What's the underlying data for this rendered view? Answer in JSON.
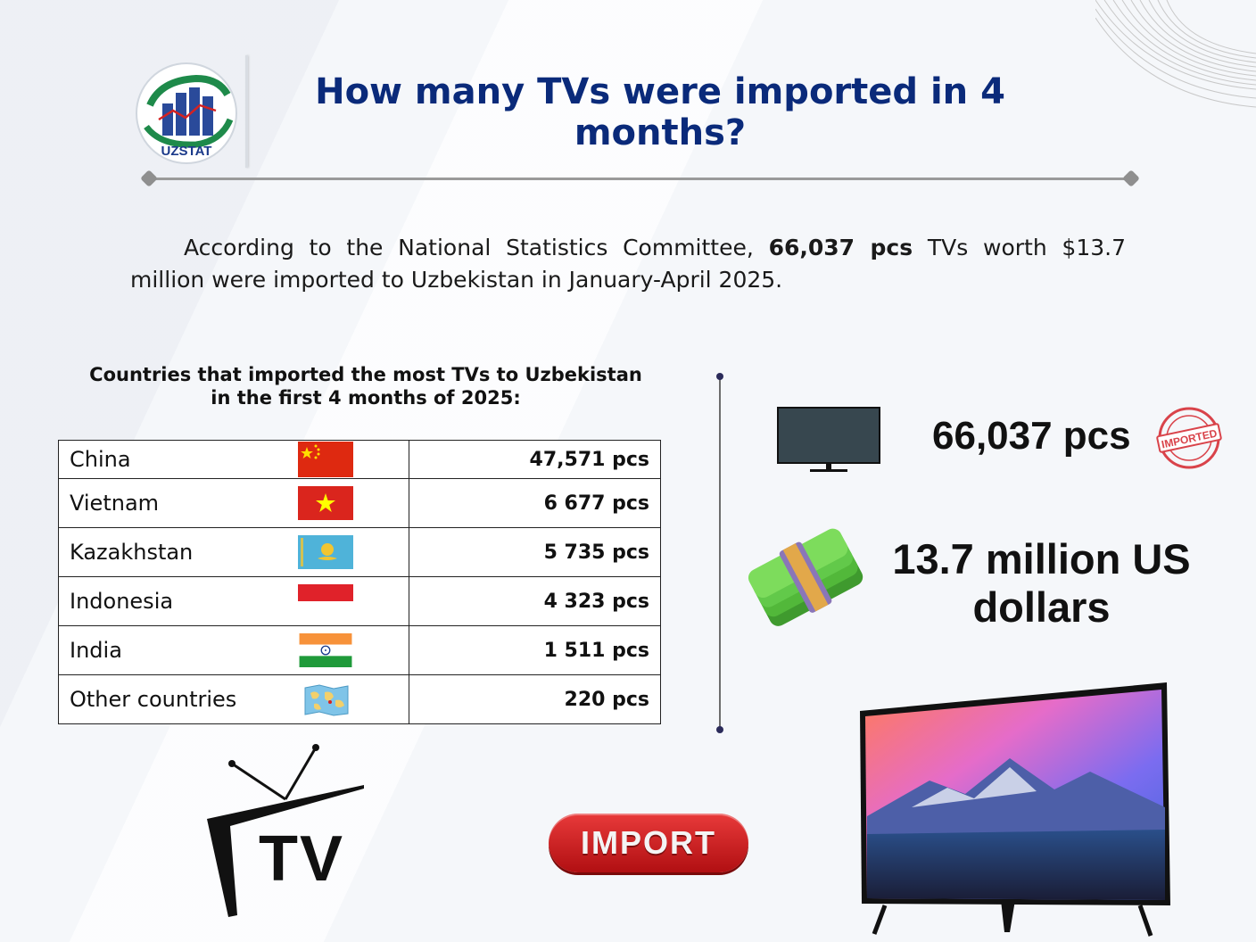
{
  "header": {
    "logo_text": "UZSTAT",
    "title": "How many TVs were imported in 4 months?"
  },
  "intro": {
    "before_bold": "According to the National Statistics Committee, ",
    "bold": "66,037 pcs",
    "after_bold": " TVs worth $13.7 million were imported to Uzbekistan in January-April 2025."
  },
  "table": {
    "heading": "Countries that imported the most TVs to Uzbekistan in the first 4 months of 2025:",
    "rows": [
      {
        "country": "China",
        "value": "47,571 pcs"
      },
      {
        "country": "Vietnam",
        "value": "6 677 pcs"
      },
      {
        "country": "Kazakhstan",
        "value": "5 735 pcs"
      },
      {
        "country": "Indonesia",
        "value": "4 323 pcs"
      },
      {
        "country": "India",
        "value": "1 511 pcs"
      },
      {
        "country": "Other countries",
        "value": "220 pcs"
      }
    ]
  },
  "summary": {
    "pcs": "66,037 pcs",
    "usd": "13.7 million US dollars",
    "stamp_text": "IMPORTED"
  },
  "footer": {
    "tv_logo_text": "TV",
    "import_label": "IMPORT"
  },
  "colors": {
    "title": "#0a2a7a",
    "import_button": "#d42222"
  },
  "icons": [
    "uzstat-logo",
    "flag-china",
    "flag-vietnam",
    "flag-kazakhstan",
    "flag-indonesia",
    "flag-india",
    "world-map-icon",
    "tv-icon",
    "imported-stamp-icon",
    "money-bundle-icon",
    "tv-antenna-logo",
    "tv-photo"
  ]
}
